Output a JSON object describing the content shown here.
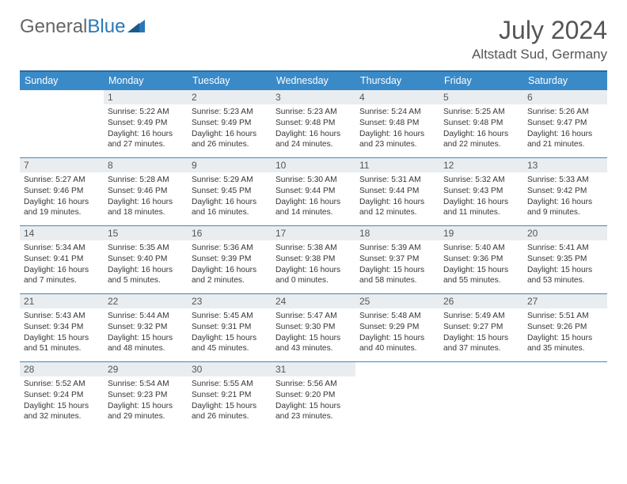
{
  "branding": {
    "part1": "General",
    "part2": "Blue"
  },
  "header": {
    "title": "July 2024",
    "location": "Altstadt Sud, Germany"
  },
  "colors": {
    "header_bg": "#3a8ac8",
    "border": "#3a8ac8",
    "daybar_bg": "#e9edf0"
  },
  "daysOfWeek": [
    "Sunday",
    "Monday",
    "Tuesday",
    "Wednesday",
    "Thursday",
    "Friday",
    "Saturday"
  ],
  "weeks": [
    [
      {
        "n": "",
        "sr": "",
        "ss": "",
        "dl": "",
        "empty": true
      },
      {
        "n": "1",
        "sr": "5:22 AM",
        "ss": "9:49 PM",
        "dl": "16 hours and 27 minutes."
      },
      {
        "n": "2",
        "sr": "5:23 AM",
        "ss": "9:49 PM",
        "dl": "16 hours and 26 minutes."
      },
      {
        "n": "3",
        "sr": "5:23 AM",
        "ss": "9:48 PM",
        "dl": "16 hours and 24 minutes."
      },
      {
        "n": "4",
        "sr": "5:24 AM",
        "ss": "9:48 PM",
        "dl": "16 hours and 23 minutes."
      },
      {
        "n": "5",
        "sr": "5:25 AM",
        "ss": "9:48 PM",
        "dl": "16 hours and 22 minutes."
      },
      {
        "n": "6",
        "sr": "5:26 AM",
        "ss": "9:47 PM",
        "dl": "16 hours and 21 minutes."
      }
    ],
    [
      {
        "n": "7",
        "sr": "5:27 AM",
        "ss": "9:46 PM",
        "dl": "16 hours and 19 minutes."
      },
      {
        "n": "8",
        "sr": "5:28 AM",
        "ss": "9:46 PM",
        "dl": "16 hours and 18 minutes."
      },
      {
        "n": "9",
        "sr": "5:29 AM",
        "ss": "9:45 PM",
        "dl": "16 hours and 16 minutes."
      },
      {
        "n": "10",
        "sr": "5:30 AM",
        "ss": "9:44 PM",
        "dl": "16 hours and 14 minutes."
      },
      {
        "n": "11",
        "sr": "5:31 AM",
        "ss": "9:44 PM",
        "dl": "16 hours and 12 minutes."
      },
      {
        "n": "12",
        "sr": "5:32 AM",
        "ss": "9:43 PM",
        "dl": "16 hours and 11 minutes."
      },
      {
        "n": "13",
        "sr": "5:33 AM",
        "ss": "9:42 PM",
        "dl": "16 hours and 9 minutes."
      }
    ],
    [
      {
        "n": "14",
        "sr": "5:34 AM",
        "ss": "9:41 PM",
        "dl": "16 hours and 7 minutes."
      },
      {
        "n": "15",
        "sr": "5:35 AM",
        "ss": "9:40 PM",
        "dl": "16 hours and 5 minutes."
      },
      {
        "n": "16",
        "sr": "5:36 AM",
        "ss": "9:39 PM",
        "dl": "16 hours and 2 minutes."
      },
      {
        "n": "17",
        "sr": "5:38 AM",
        "ss": "9:38 PM",
        "dl": "16 hours and 0 minutes."
      },
      {
        "n": "18",
        "sr": "5:39 AM",
        "ss": "9:37 PM",
        "dl": "15 hours and 58 minutes."
      },
      {
        "n": "19",
        "sr": "5:40 AM",
        "ss": "9:36 PM",
        "dl": "15 hours and 55 minutes."
      },
      {
        "n": "20",
        "sr": "5:41 AM",
        "ss": "9:35 PM",
        "dl": "15 hours and 53 minutes."
      }
    ],
    [
      {
        "n": "21",
        "sr": "5:43 AM",
        "ss": "9:34 PM",
        "dl": "15 hours and 51 minutes."
      },
      {
        "n": "22",
        "sr": "5:44 AM",
        "ss": "9:32 PM",
        "dl": "15 hours and 48 minutes."
      },
      {
        "n": "23",
        "sr": "5:45 AM",
        "ss": "9:31 PM",
        "dl": "15 hours and 45 minutes."
      },
      {
        "n": "24",
        "sr": "5:47 AM",
        "ss": "9:30 PM",
        "dl": "15 hours and 43 minutes."
      },
      {
        "n": "25",
        "sr": "5:48 AM",
        "ss": "9:29 PM",
        "dl": "15 hours and 40 minutes."
      },
      {
        "n": "26",
        "sr": "5:49 AM",
        "ss": "9:27 PM",
        "dl": "15 hours and 37 minutes."
      },
      {
        "n": "27",
        "sr": "5:51 AM",
        "ss": "9:26 PM",
        "dl": "15 hours and 35 minutes."
      }
    ],
    [
      {
        "n": "28",
        "sr": "5:52 AM",
        "ss": "9:24 PM",
        "dl": "15 hours and 32 minutes."
      },
      {
        "n": "29",
        "sr": "5:54 AM",
        "ss": "9:23 PM",
        "dl": "15 hours and 29 minutes."
      },
      {
        "n": "30",
        "sr": "5:55 AM",
        "ss": "9:21 PM",
        "dl": "15 hours and 26 minutes."
      },
      {
        "n": "31",
        "sr": "5:56 AM",
        "ss": "9:20 PM",
        "dl": "15 hours and 23 minutes."
      },
      {
        "n": "",
        "sr": "",
        "ss": "",
        "dl": "",
        "empty": true
      },
      {
        "n": "",
        "sr": "",
        "ss": "",
        "dl": "",
        "empty": true
      },
      {
        "n": "",
        "sr": "",
        "ss": "",
        "dl": "",
        "empty": true
      }
    ]
  ],
  "labels": {
    "sunrise": "Sunrise:",
    "sunset": "Sunset:",
    "daylight": "Daylight:"
  }
}
